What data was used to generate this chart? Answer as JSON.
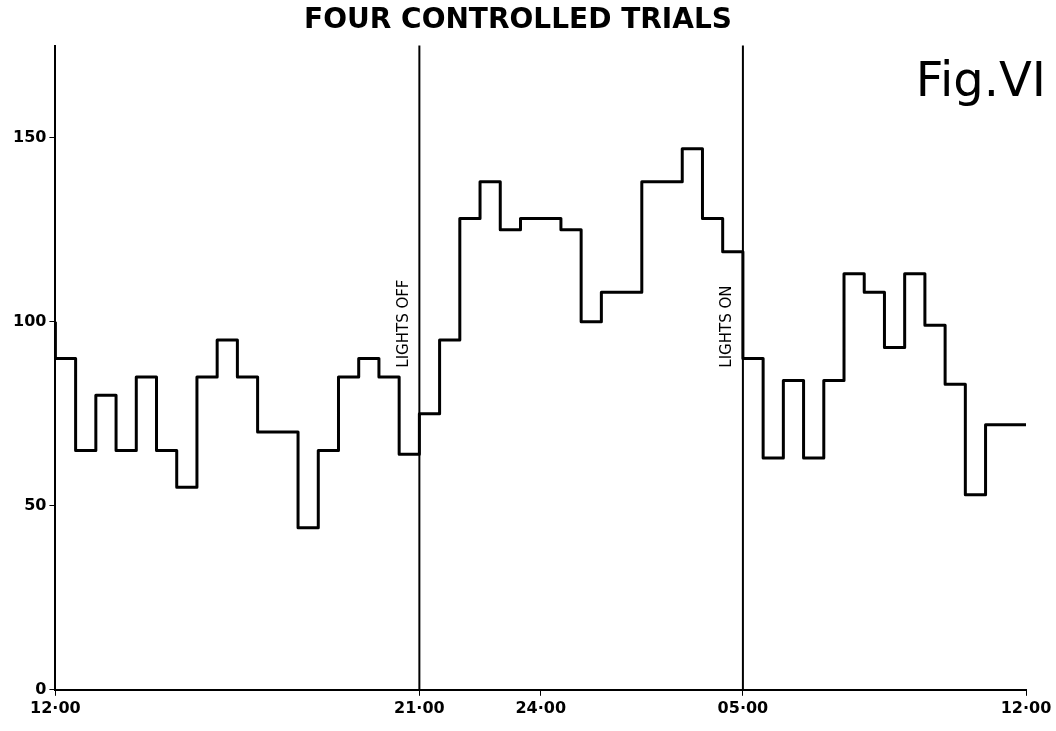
{
  "chart_data": {
    "type": "step",
    "title": "FOUR CONTROLLED TRIALS",
    "categories": [
      "12·00",
      null,
      null,
      null,
      null,
      null,
      null,
      null,
      null,
      null,
      null,
      null,
      null,
      null,
      null,
      null,
      null,
      null,
      "21·00",
      null,
      null,
      null,
      null,
      null,
      "24·00",
      null,
      null,
      null,
      null,
      null,
      null,
      null,
      null,
      null,
      "05·00",
      null,
      null,
      null,
      null,
      null,
      null,
      null,
      null,
      null,
      null,
      null,
      null,
      null,
      "12·00"
    ],
    "values": [
      100,
      90,
      65,
      80,
      65,
      85,
      65,
      55,
      85,
      95,
      85,
      70,
      70,
      44,
      65,
      85,
      90,
      85,
      64,
      75,
      95,
      128,
      138,
      125,
      128,
      128,
      125,
      100,
      108,
      108,
      138,
      138,
      147,
      128,
      119,
      90,
      63,
      84,
      63,
      84,
      113,
      108,
      93,
      113,
      99,
      83,
      53,
      72,
      72
    ],
    "color": "#000000",
    "ylim": [
      0,
      175
    ],
    "yticks": [
      0,
      50,
      100,
      150
    ],
    "ref_lines": [
      {
        "axis": "x",
        "value": "21·00",
        "label": "LIGHTS OFF",
        "color": "#000000"
      },
      {
        "axis": "x",
        "value": "05·00",
        "label": "LIGHTS ON",
        "color": "#000000"
      }
    ],
    "annotations": [
      "Fig.VI"
    ],
    "grid": false,
    "legend": false
  }
}
